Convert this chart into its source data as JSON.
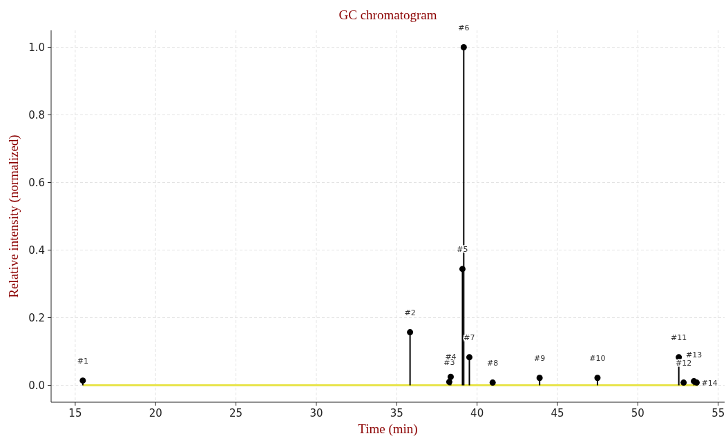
{
  "chart_data": {
    "type": "lollipop",
    "title": "GC chromatogram",
    "xlabel": "Time (min)",
    "ylabel": "Relative intensity (normalized)",
    "xlim": [
      13.5,
      55.4
    ],
    "ylim": [
      -0.05,
      1.05
    ],
    "xticks": [
      15,
      20,
      25,
      30,
      35,
      40,
      45,
      50,
      55
    ],
    "yticks": [
      {
        "value": 0,
        "label": "0.0"
      },
      {
        "value": 0.2,
        "label": "0.2"
      },
      {
        "value": 0.4,
        "label": "0.4"
      },
      {
        "value": 0.6,
        "label": "0.6"
      },
      {
        "value": 0.8,
        "label": "0.8"
      },
      {
        "value": 1,
        "label": "1.0"
      }
    ],
    "grid": true,
    "marker": "circle",
    "series": [
      {
        "type": "line",
        "marker": "none",
        "color": "#e8e44c",
        "x": [
          15.47,
          53.75
        ],
        "values": [
          0,
          0
        ]
      },
      {
        "color": "#000000",
        "x": [
          15.47,
          35.83,
          38.27,
          38.36,
          39.09,
          39.17,
          39.52,
          40.97,
          43.89,
          47.49,
          52.55,
          52.85,
          53.49,
          53.66
        ],
        "values": [
          0.014,
          0.157,
          0.01,
          0.025,
          0.344,
          1.0,
          0.083,
          0.008,
          0.022,
          0.022,
          0.083,
          0.008,
          0.012,
          0.008
        ]
      }
    ],
    "annotations": [
      {
        "text": "#1",
        "x": 15.47,
        "y": 0.014
      },
      {
        "text": "#2",
        "x": 35.83,
        "y": 0.157
      },
      {
        "text": "#3",
        "x": 38.27,
        "y": 0.01
      },
      {
        "text": "#4",
        "x": 38.36,
        "y": 0.025
      },
      {
        "text": "#5",
        "x": 39.09,
        "y": 0.344
      },
      {
        "text": "#6",
        "x": 39.17,
        "y": 1.0
      },
      {
        "text": "#7",
        "x": 39.52,
        "y": 0.083
      },
      {
        "text": "#8",
        "x": 40.97,
        "y": 0.008
      },
      {
        "text": "#9",
        "x": 43.89,
        "y": 0.022
      },
      {
        "text": "#10",
        "x": 47.49,
        "y": 0.022
      },
      {
        "text": "#11",
        "x": 52.55,
        "y": 0.083
      },
      {
        "text": "#12",
        "x": 52.85,
        "y": 0.008
      },
      {
        "text": "#13",
        "x": 53.49,
        "y": 0.012
      },
      {
        "text": "#14",
        "x": 53.66,
        "y": 0.008
      }
    ]
  }
}
